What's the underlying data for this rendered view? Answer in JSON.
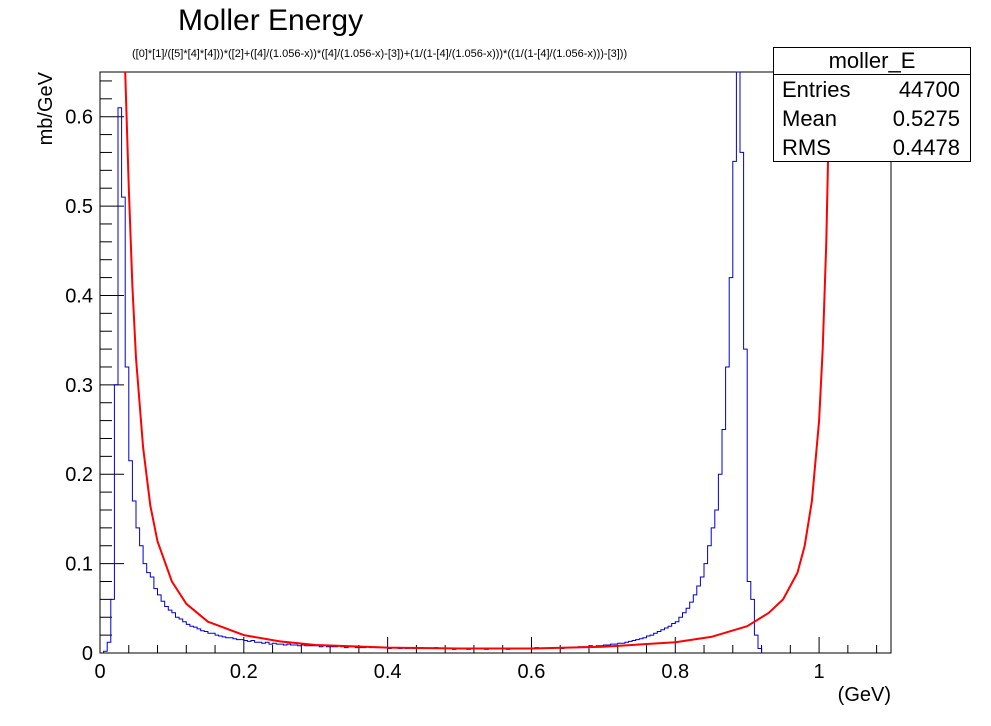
{
  "chart_data": {
    "type": "histogram",
    "title": "Moller Energy",
    "fit_function": "([0]*[1]/([5]*[4]*[4]))*([2]+([4]/(1.056-x))*([4]/(1.056-x)-[3])+(1/(1-[4]/(1.056-x)))*((1/(1-[4]/(1.056-x)))-[3]))",
    "xlabel": "(GeV)",
    "ylabel": "mb/GeV",
    "xlim": [
      0,
      1.1
    ],
    "ylim": [
      0,
      0.65
    ],
    "x_ticks": [
      "0",
      "0.2",
      "0.4",
      "0.6",
      "0.8",
      "1"
    ],
    "y_ticks": [
      "0",
      "0.1",
      "0.2",
      "0.3",
      "0.4",
      "0.5",
      "0.6"
    ],
    "grid": false,
    "stats": {
      "name": "moller_E",
      "rows": [
        {
          "label": "Entries",
          "value": "44700"
        },
        {
          "label": "Mean",
          "value": "0.5275"
        },
        {
          "label": "RMS",
          "value": "0.4478"
        }
      ]
    },
    "series": [
      {
        "kind": "histogram",
        "color": "#0000cc",
        "bin_width": 0.005,
        "x_start": 0.005,
        "values": [
          0.002,
          0.012,
          0.06,
          0.3,
          0.61,
          0.51,
          0.32,
          0.215,
          0.17,
          0.14,
          0.12,
          0.1,
          0.09,
          0.085,
          0.072,
          0.065,
          0.058,
          0.052,
          0.048,
          0.045,
          0.04,
          0.038,
          0.035,
          0.032,
          0.03,
          0.029,
          0.027,
          0.025,
          0.024,
          0.022,
          0.022,
          0.02,
          0.019,
          0.018,
          0.017,
          0.017,
          0.016,
          0.015,
          0.015,
          0.014,
          0.013,
          0.014,
          0.012,
          0.012,
          0.011,
          0.012,
          0.01,
          0.011,
          0.01,
          0.01,
          0.009,
          0.01,
          0.009,
          0.009,
          0.008,
          0.009,
          0.008,
          0.008,
          0.008,
          0.008,
          0.007,
          0.008,
          0.007,
          0.007,
          0.007,
          0.008,
          0.007,
          0.006,
          0.007,
          0.007,
          0.006,
          0.006,
          0.006,
          0.007,
          0.006,
          0.006,
          0.006,
          0.006,
          0.006,
          0.005,
          0.006,
          0.006,
          0.005,
          0.006,
          0.005,
          0.006,
          0.005,
          0.005,
          0.006,
          0.005,
          0.005,
          0.005,
          0.006,
          0.005,
          0.005,
          0.005,
          0.005,
          0.004,
          0.005,
          0.005,
          0.005,
          0.004,
          0.005,
          0.005,
          0.005,
          0.005,
          0.004,
          0.005,
          0.005,
          0.005,
          0.005,
          0.005,
          0.004,
          0.005,
          0.005,
          0.005,
          0.005,
          0.005,
          0.005,
          0.005,
          0.006,
          0.005,
          0.005,
          0.005,
          0.005,
          0.006,
          0.006,
          0.005,
          0.006,
          0.006,
          0.006,
          0.006,
          0.007,
          0.007,
          0.007,
          0.008,
          0.007,
          0.008,
          0.008,
          0.009,
          0.009,
          0.01,
          0.01,
          0.011,
          0.011,
          0.012,
          0.013,
          0.014,
          0.015,
          0.016,
          0.017,
          0.019,
          0.02,
          0.022,
          0.024,
          0.026,
          0.028,
          0.03,
          0.033,
          0.035,
          0.04,
          0.045,
          0.05,
          0.057,
          0.065,
          0.075,
          0.085,
          0.1,
          0.12,
          0.14,
          0.16,
          0.2,
          0.25,
          0.32,
          0.42,
          0.55,
          0.68,
          0.56,
          0.34,
          0.08,
          0.06,
          0.02,
          0.005
        ]
      },
      {
        "kind": "fit",
        "color": "#ff0000",
        "x": [
          0.035,
          0.04,
          0.045,
          0.05,
          0.06,
          0.07,
          0.08,
          0.1,
          0.12,
          0.15,
          0.2,
          0.25,
          0.3,
          0.4,
          0.5,
          0.55,
          0.6,
          0.7,
          0.8,
          0.85,
          0.9,
          0.93,
          0.95,
          0.97,
          0.98,
          0.99,
          1.0,
          1.005,
          1.01,
          1.015
        ],
        "y": [
          0.67,
          0.52,
          0.41,
          0.33,
          0.23,
          0.165,
          0.125,
          0.08,
          0.055,
          0.035,
          0.02,
          0.013,
          0.009,
          0.006,
          0.005,
          0.005,
          0.005,
          0.007,
          0.012,
          0.018,
          0.03,
          0.045,
          0.06,
          0.09,
          0.12,
          0.17,
          0.26,
          0.34,
          0.46,
          0.66
        ]
      }
    ]
  }
}
